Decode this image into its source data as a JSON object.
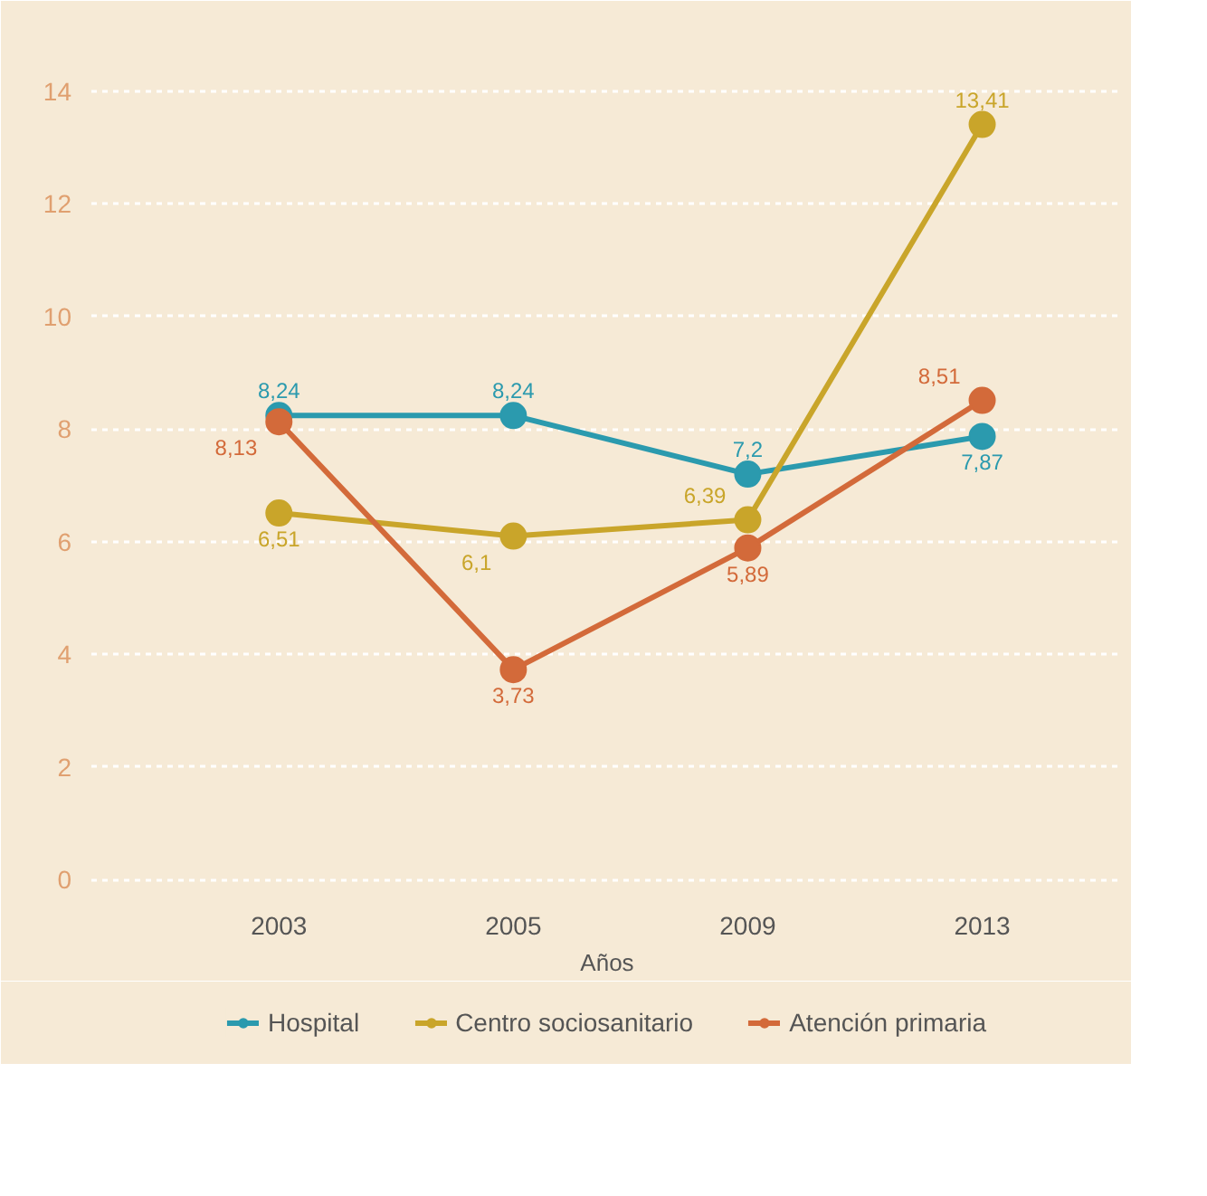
{
  "chart_data": {
    "type": "line",
    "xlabel": "Años",
    "categories": [
      "2003",
      "2005",
      "2009",
      "2013"
    ],
    "series": [
      {
        "name": "Hospital",
        "color": "#2b9aae",
        "values": [
          8.24,
          8.24,
          7.2,
          7.87
        ],
        "value_labels": [
          "8,24",
          "8,24",
          "7,2",
          "7,87"
        ]
      },
      {
        "name": "Centro sociosanitario",
        "color": "#c9a52a",
        "values": [
          6.51,
          6.1,
          6.39,
          13.41
        ],
        "value_labels": [
          "6,51",
          "6,1",
          "6,39",
          "13,41"
        ]
      },
      {
        "name": "Atención primaria",
        "color": "#d36a3a",
        "values": [
          8.13,
          3.73,
          5.89,
          8.51
        ],
        "value_labels": [
          "8,13",
          "3,73",
          "5,89",
          "8,51"
        ]
      }
    ],
    "ylim": [
      -0.3,
      14.8
    ],
    "yticks": [
      0,
      2,
      4,
      6,
      8,
      10,
      12,
      14
    ],
    "grid": "y",
    "legend": "bottom",
    "marker": "circle",
    "line_style": "solid"
  }
}
